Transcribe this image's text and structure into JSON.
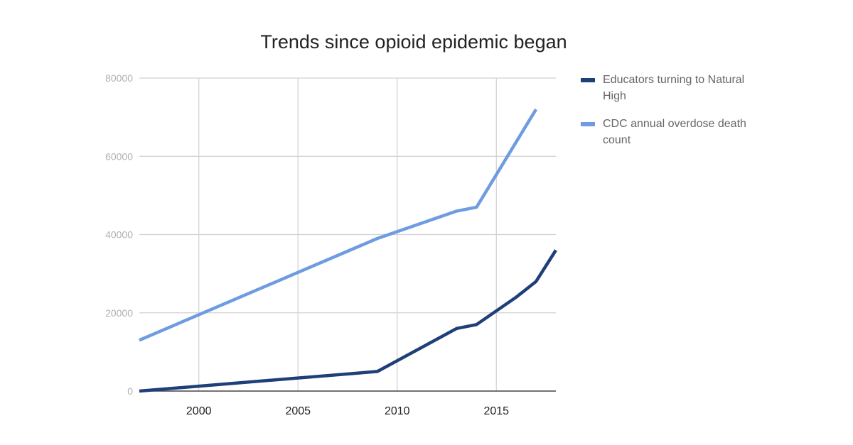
{
  "chart_data": {
    "type": "line",
    "title": "Trends since opioid epidemic began",
    "xlabel": "",
    "ylabel": "",
    "xlim": [
      1997,
      2018
    ],
    "ylim": [
      0,
      80000
    ],
    "x_ticks": [
      2000,
      2005,
      2010,
      2015
    ],
    "y_ticks": [
      0,
      20000,
      40000,
      60000,
      80000
    ],
    "grid": true,
    "legend_position": "right",
    "series": [
      {
        "name": "Educators turning to Natural High",
        "color": "#1f3f78",
        "x": [
          1997,
          2009,
          2013,
          2014,
          2016,
          2017,
          2018
        ],
        "values": [
          0,
          5000,
          16000,
          17000,
          24000,
          28000,
          36000
        ]
      },
      {
        "name": "CDC annual overdose death count",
        "color": "#6f9ce0",
        "x": [
          1997,
          2009,
          2013,
          2014,
          2017
        ],
        "values": [
          13000,
          39000,
          46000,
          47000,
          72000
        ]
      }
    ]
  },
  "legend": {
    "items": [
      {
        "label": "Educators turning to Natural High",
        "color": "#1f3f78"
      },
      {
        "label": "CDC annual overdose death count",
        "color": "#6f9ce0"
      }
    ]
  }
}
